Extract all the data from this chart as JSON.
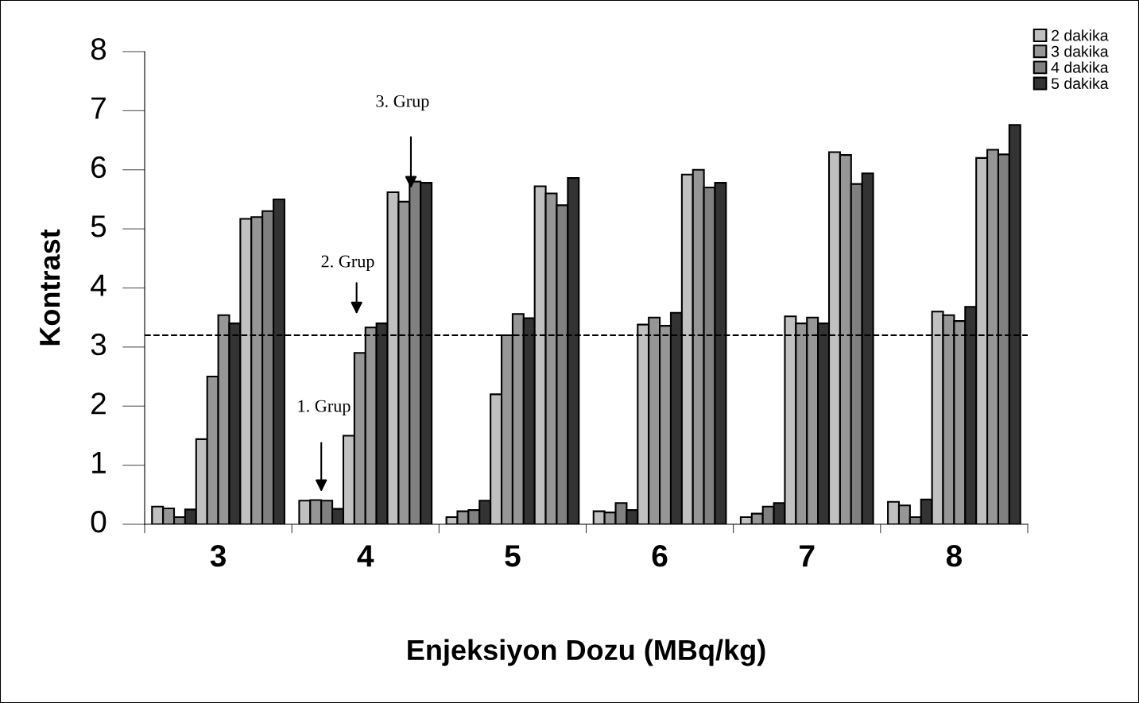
{
  "chart_data": {
    "type": "bar",
    "xlabel": "Enjeksiyon Dozu (MBq/kg)",
    "ylabel": "Kontrast",
    "categories": [
      "3",
      "4",
      "5",
      "6",
      "7",
      "8"
    ],
    "series": [
      {
        "name": "2 dakika",
        "color": "#c0c0c0",
        "values": [
          0.3,
          0.4,
          0.12,
          0.22,
          0.12,
          0.38
        ]
      },
      {
        "name": "3 dakika",
        "color": "#969696",
        "values": [
          0.27,
          0.41,
          0.22,
          0.2,
          0.18,
          0.32
        ]
      },
      {
        "name": "4 dakika",
        "color": "#808080",
        "values": [
          0.12,
          0.4,
          0.24,
          0.36,
          0.3,
          0.12
        ]
      },
      {
        "name": "5 dakika",
        "color": "#333333",
        "values": [
          0.25,
          0.26,
          0.4,
          0.24,
          0.36,
          0.42
        ]
      },
      {
        "color": "#c0c0c0",
        "values": [
          1.44,
          1.5,
          2.2,
          3.38,
          3.52,
          3.6
        ]
      },
      {
        "color": "#969696",
        "values": [
          2.5,
          2.9,
          3.2,
          3.5,
          3.4,
          3.54
        ]
      },
      {
        "color": "#969696",
        "values": [
          3.54,
          3.33,
          3.56,
          3.36,
          3.5,
          3.44
        ]
      },
      {
        "color": "#333333",
        "values": [
          3.4,
          3.4,
          3.49,
          3.58,
          3.4,
          3.68
        ]
      },
      {
        "color": "#c0c0c0",
        "values": [
          5.17,
          5.62,
          5.72,
          5.92,
          6.3,
          6.2
        ]
      },
      {
        "color": "#969696",
        "values": [
          5.2,
          5.46,
          5.6,
          6.0,
          6.25,
          6.34
        ]
      },
      {
        "color": "#808080",
        "values": [
          5.3,
          5.8,
          5.4,
          5.7,
          5.76,
          6.26
        ]
      },
      {
        "color": "#333333",
        "values": [
          5.5,
          5.78,
          5.86,
          5.78,
          5.94,
          6.76
        ]
      }
    ],
    "ylim": [
      0,
      8
    ],
    "yticks": [
      0,
      1,
      2,
      3,
      4,
      5,
      6,
      7,
      8
    ],
    "ref_lines": [
      {
        "axis": "y",
        "value": 3.2,
        "line_style": "dashed",
        "color": "#000000"
      }
    ],
    "annotations": [
      "1. Grup",
      "2. Grup",
      "3. Grup"
    ],
    "legend": "top right",
    "grid": false
  }
}
